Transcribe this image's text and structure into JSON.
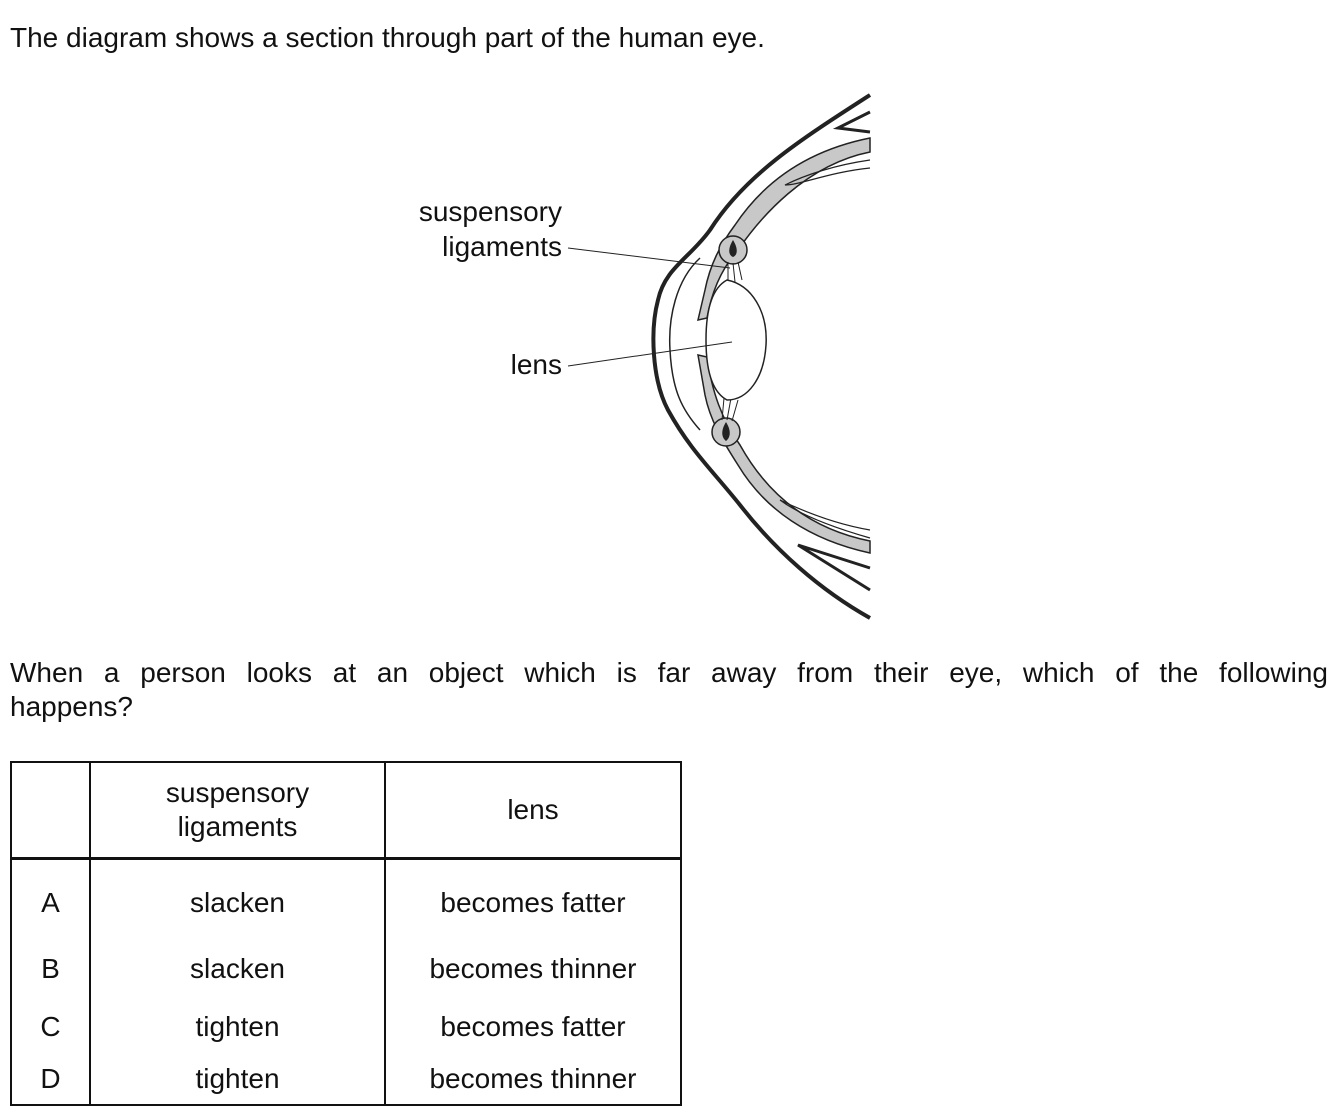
{
  "intro_text": "The diagram shows a section through part of the human eye.",
  "diagram": {
    "labels": {
      "suspensory_ligaments": [
        "suspensory",
        "ligaments"
      ],
      "lens": "lens"
    },
    "colors": {
      "outline": "#222222",
      "tissue_fill": "#c8c8c8"
    }
  },
  "question_text": "When a person looks at an object which is far away from their eye, which of the following happens?",
  "answer_table": {
    "headers": {
      "suspensory_ligaments": [
        "suspensory",
        "ligaments"
      ],
      "lens": "lens"
    },
    "rows": [
      {
        "option": "A",
        "suspensory_ligaments": "slacken",
        "lens": "becomes fatter"
      },
      {
        "option": "B",
        "suspensory_ligaments": "slacken",
        "lens": "becomes thinner"
      },
      {
        "option": "C",
        "suspensory_ligaments": "tighten",
        "lens": "becomes fatter"
      },
      {
        "option": "D",
        "suspensory_ligaments": "tighten",
        "lens": "becomes thinner"
      }
    ]
  }
}
